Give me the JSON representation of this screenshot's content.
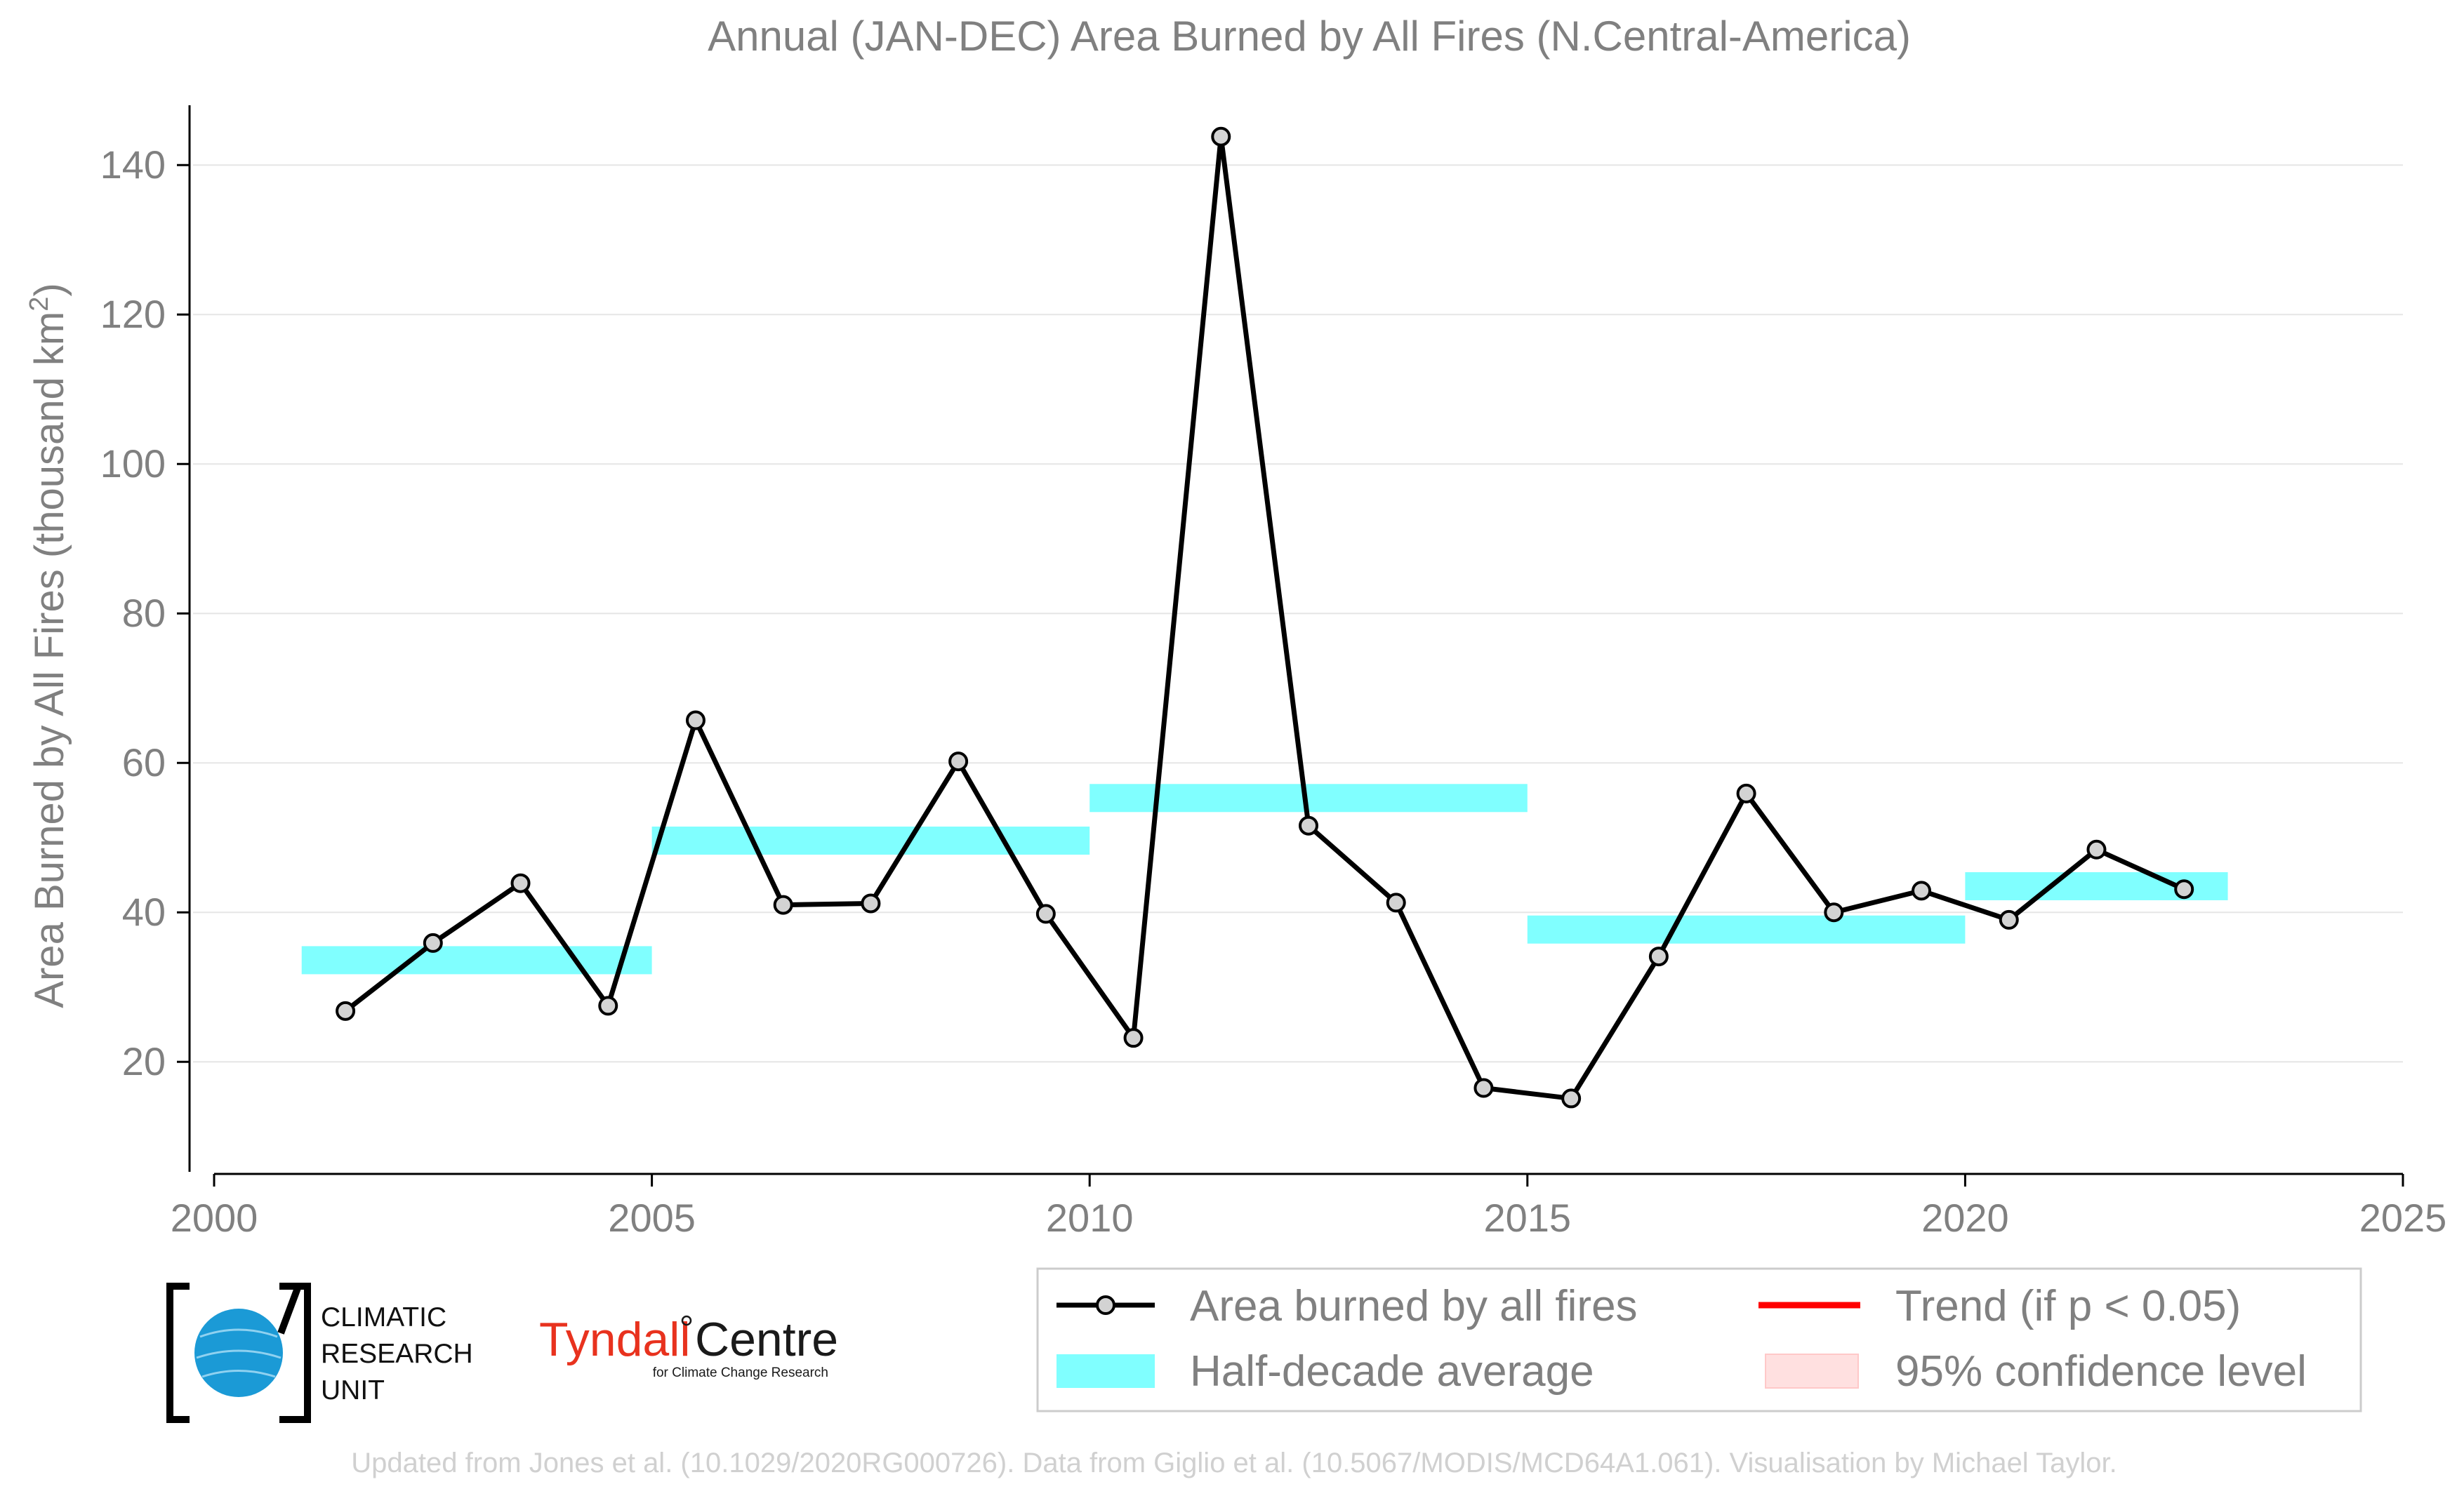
{
  "chart_data": {
    "type": "line",
    "title": "Annual (JAN-DEC) Area Burned by All Fires (N.Central-America)",
    "ylabel": "Area Burned by All Fires (thousand km",
    "ylabel_sup": "2",
    "ylabel_end": ")",
    "xlabel": "",
    "xlim": [
      2000,
      2025
    ],
    "ylim": [
      5,
      148
    ],
    "x_ticks": [
      2000,
      2005,
      2010,
      2015,
      2020,
      2025
    ],
    "y_ticks": [
      20,
      40,
      60,
      80,
      100,
      120,
      140
    ],
    "grid": "horizontal",
    "series": [
      {
        "name": "Area burned by all fires",
        "color": "#000000",
        "marker_fill": "#d3d3d3",
        "x": [
          2001.5,
          2002.5,
          2003.5,
          2004.5,
          2005.5,
          2006.5,
          2007.5,
          2008.5,
          2009.5,
          2010.5,
          2011.5,
          2012.5,
          2013.5,
          2014.5,
          2015.5,
          2016.5,
          2017.5,
          2018.5,
          2019.5,
          2020.5,
          2021.5,
          2022.5
        ],
        "y": [
          26.8,
          35.9,
          43.9,
          27.5,
          65.7,
          41.0,
          41.2,
          60.2,
          39.8,
          23.2,
          143.8,
          51.6,
          41.3,
          16.5,
          15.1,
          34.1,
          55.9,
          40.0,
          42.9,
          39.0,
          48.4,
          43.1
        ]
      }
    ],
    "half_decade_average": {
      "name": "Half-decade average",
      "color": "#80ffff",
      "segments": [
        {
          "x0": 2001,
          "x1": 2005,
          "y": 33.6
        },
        {
          "x0": 2005,
          "x1": 2010,
          "y": 49.6
        },
        {
          "x0": 2010,
          "x1": 2015,
          "y": 55.3
        },
        {
          "x0": 2015,
          "x1": 2020,
          "y": 37.7
        },
        {
          "x0": 2020,
          "x1": 2023,
          "y": 43.5
        }
      ]
    },
    "legend": {
      "placement": "bottom-right",
      "entries": [
        {
          "key": "line",
          "label": "Area burned by all fires",
          "color": "#000000"
        },
        {
          "key": "trend",
          "label": "Trend (if p < 0.05)",
          "color": "#ff0000"
        },
        {
          "key": "band",
          "label": "Half-decade average",
          "color": "#80ffff"
        },
        {
          "key": "ci",
          "label": "95% confidence level",
          "color": "#ffe0e0"
        }
      ]
    }
  },
  "logos": {
    "cru": [
      "CLIMATIC",
      "RESEARCH",
      "UNIT"
    ],
    "tyndall_main": "Tyndall",
    "tyndall_centre": "Centre",
    "tyndall_sub": "for Climate Change Research"
  },
  "footer": "Updated from Jones et al. (10.1029/2020RG000726). Data from Giglio et al. (10.5067/MODIS/MCD64A1.061). Visualisation by Michael Taylor."
}
